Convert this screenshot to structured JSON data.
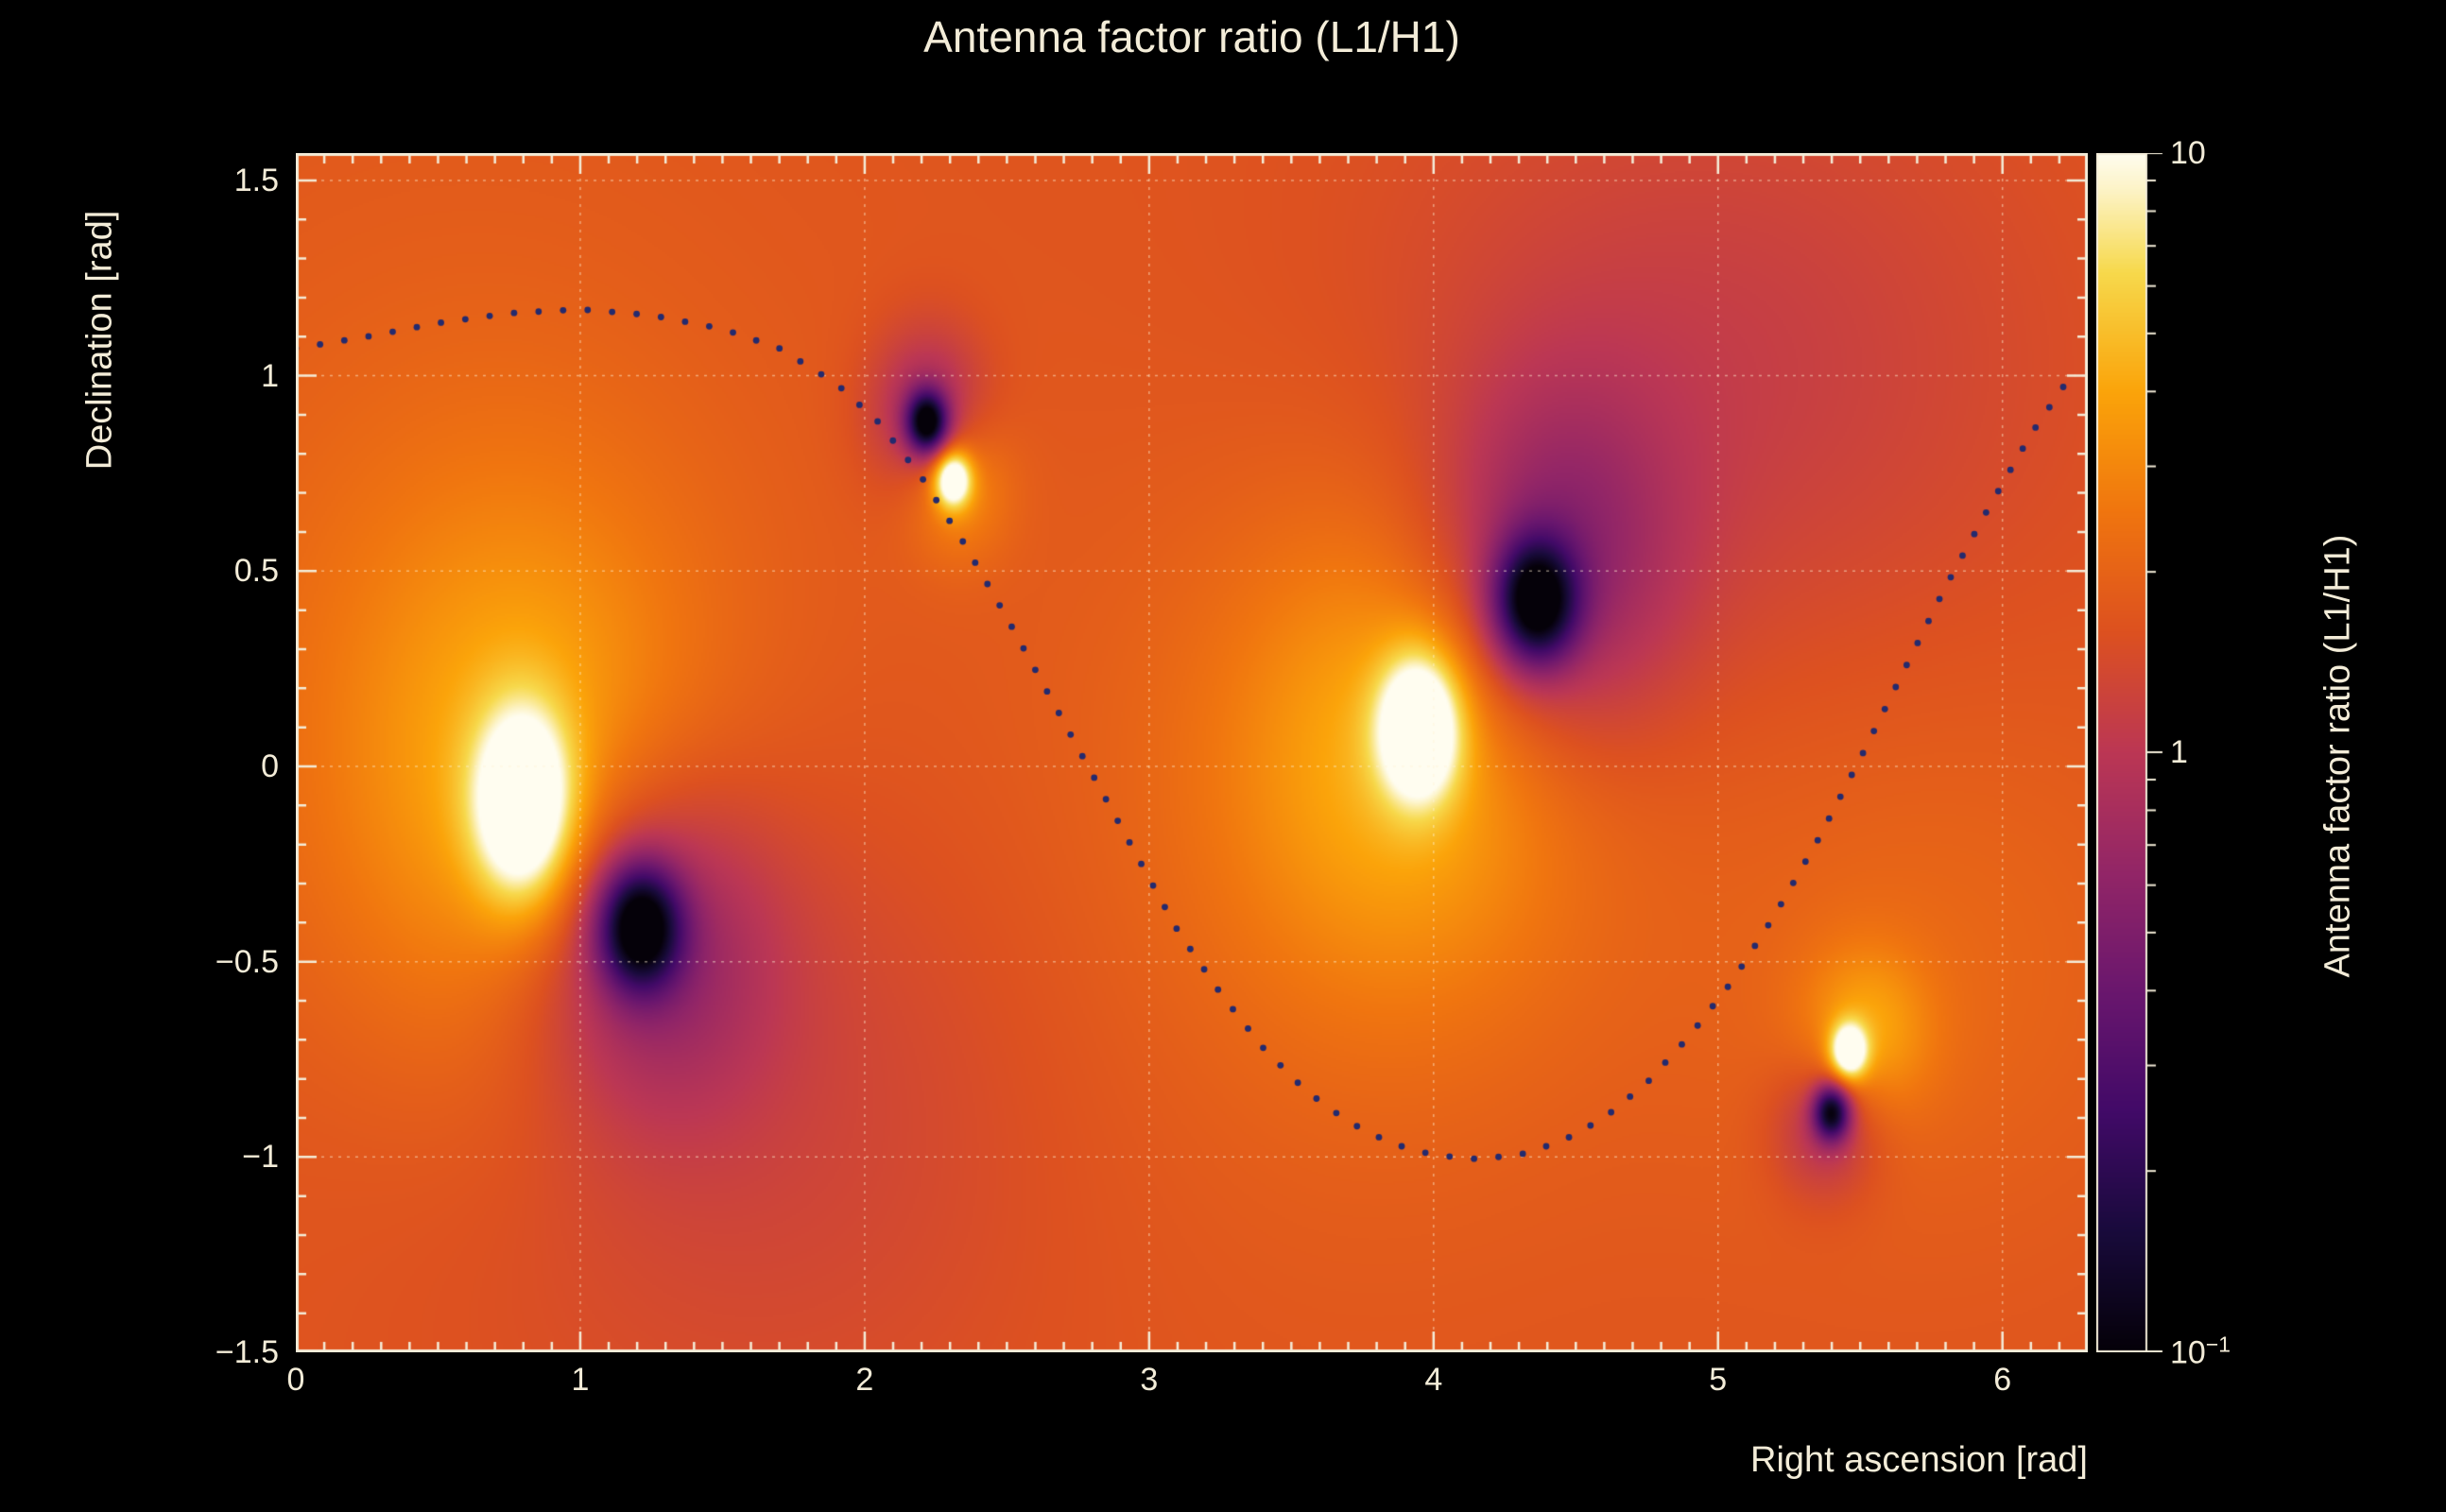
{
  "page": {
    "title": "Antenna factor ratio (L1/H1)"
  },
  "chart_data": {
    "type": "heatmap",
    "title": "Antenna factor ratio (L1/H1)",
    "xlabel": "Right ascension [rad]",
    "ylabel": "Declination [rad]",
    "colorbar_label": "Antenna factor ratio (L1/H1)",
    "x_range": [
      0,
      6.3
    ],
    "y_range": [
      -1.5,
      1.57
    ],
    "z_range": [
      0.1,
      10
    ],
    "z_scale": "log10",
    "grid": true,
    "x_ticks": [
      0,
      1,
      2,
      3,
      4,
      5,
      6
    ],
    "x_tick_labels": [
      "0",
      "1",
      "2",
      "3",
      "4",
      "5",
      "6"
    ],
    "x_minor_step": 0.1,
    "y_ticks": [
      -1.5,
      -1,
      -0.5,
      0,
      0.5,
      1,
      1.5
    ],
    "y_tick_labels": [
      "−1.5",
      "−1",
      "−0.5",
      "0",
      "0.5",
      "1",
      "1.5"
    ],
    "y_minor_step": 0.1,
    "colorbar_ticks": [
      {
        "value": 10,
        "label": "10",
        "sup": ""
      },
      {
        "value": 1,
        "label": "1",
        "sup": ""
      },
      {
        "value": 0.1,
        "label": "10",
        "sup": "−1"
      }
    ],
    "background_log10": 0.22,
    "features": [
      {
        "x": 0.8,
        "y": -0.1,
        "sx": 0.12,
        "sy": 0.17,
        "amp": 0.95
      },
      {
        "x": 0.8,
        "y": -0.05,
        "sx": 0.45,
        "sy": 0.5,
        "amp": 0.38
      },
      {
        "x": 0.55,
        "y": 0.35,
        "sx": 0.9,
        "sy": 0.8,
        "amp": 0.1
      },
      {
        "x": 1.21,
        "y": -0.41,
        "sx": 0.1,
        "sy": 0.11,
        "amp": -1.15
      },
      {
        "x": 1.24,
        "y": -0.45,
        "sx": 0.3,
        "sy": 0.3,
        "amp": -0.5
      },
      {
        "x": 1.6,
        "y": -0.8,
        "sx": 0.8,
        "sy": 0.6,
        "amp": -0.14
      },
      {
        "x": 2.22,
        "y": 0.88,
        "sx": 0.05,
        "sy": 0.055,
        "amp": -1.15
      },
      {
        "x": 2.22,
        "y": 0.9,
        "sx": 0.14,
        "sy": 0.15,
        "amp": -0.4
      },
      {
        "x": 2.31,
        "y": 0.735,
        "sx": 0.045,
        "sy": 0.05,
        "amp": 0.95
      },
      {
        "x": 2.32,
        "y": 0.72,
        "sx": 0.13,
        "sy": 0.13,
        "amp": 0.32
      },
      {
        "x": 3.95,
        "y": 0.1,
        "sx": 0.1,
        "sy": 0.13,
        "amp": 0.95
      },
      {
        "x": 3.9,
        "y": 0.05,
        "sx": 0.42,
        "sy": 0.42,
        "amp": 0.38
      },
      {
        "x": 3.55,
        "y": -0.25,
        "sx": 0.9,
        "sy": 0.7,
        "amp": 0.1
      },
      {
        "x": 4.36,
        "y": 0.42,
        "sx": 0.1,
        "sy": 0.11,
        "amp": -1.15
      },
      {
        "x": 4.42,
        "y": 0.5,
        "sx": 0.3,
        "sy": 0.32,
        "amp": -0.48
      },
      {
        "x": 4.95,
        "y": 1.0,
        "sx": 0.8,
        "sy": 0.55,
        "amp": -0.17
      },
      {
        "x": 5.46,
        "y": -0.73,
        "sx": 0.045,
        "sy": 0.05,
        "amp": 0.92
      },
      {
        "x": 5.52,
        "y": -0.68,
        "sx": 0.16,
        "sy": 0.15,
        "amp": 0.32
      },
      {
        "x": 5.75,
        "y": -0.5,
        "sx": 0.6,
        "sy": 0.5,
        "amp": 0.1
      },
      {
        "x": 5.4,
        "y": -0.885,
        "sx": 0.045,
        "sy": 0.05,
        "amp": -1.05
      },
      {
        "x": 5.38,
        "y": -0.92,
        "sx": 0.13,
        "sy": 0.13,
        "amp": -0.33
      }
    ],
    "track": {
      "color": "#242a6e",
      "points": [
        [
          0.0,
          1.07
        ],
        [
          0.25,
          1.1
        ],
        [
          0.5,
          1.135
        ],
        [
          0.75,
          1.16
        ],
        [
          1.0,
          1.17
        ],
        [
          1.25,
          1.155
        ],
        [
          1.5,
          1.12
        ],
        [
          1.7,
          1.07
        ],
        [
          1.9,
          0.98
        ],
        [
          2.05,
          0.88
        ],
        [
          2.2,
          0.74
        ],
        [
          2.35,
          0.57
        ],
        [
          2.5,
          0.38
        ],
        [
          2.65,
          0.18
        ],
        [
          2.8,
          -0.02
        ],
        [
          2.95,
          -0.22
        ],
        [
          3.1,
          -0.42
        ],
        [
          3.25,
          -0.58
        ],
        [
          3.4,
          -0.72
        ],
        [
          3.55,
          -0.83
        ],
        [
          3.7,
          -0.91
        ],
        [
          3.85,
          -0.965
        ],
        [
          4.0,
          -0.995
        ],
        [
          4.15,
          -1.005
        ],
        [
          4.3,
          -0.995
        ],
        [
          4.45,
          -0.96
        ],
        [
          4.6,
          -0.9
        ],
        [
          4.75,
          -0.81
        ],
        [
          4.9,
          -0.69
        ],
        [
          5.05,
          -0.55
        ],
        [
          5.2,
          -0.38
        ],
        [
          5.35,
          -0.19
        ],
        [
          5.5,
          0.02
        ],
        [
          5.65,
          0.24
        ],
        [
          5.8,
          0.46
        ],
        [
          5.95,
          0.66
        ],
        [
          6.1,
          0.85
        ],
        [
          6.25,
          1.01
        ]
      ]
    },
    "colormap_stops": [
      [
        0.0,
        "#050109"
      ],
      [
        0.1,
        "#190b3c"
      ],
      [
        0.2,
        "#420a68"
      ],
      [
        0.3,
        "#6a176e"
      ],
      [
        0.4,
        "#932667"
      ],
      [
        0.5,
        "#bc3754"
      ],
      [
        0.6,
        "#dd5120"
      ],
      [
        0.7,
        "#f0750f"
      ],
      [
        0.8,
        "#fba40a"
      ],
      [
        0.9,
        "#f7d94c"
      ],
      [
        0.97,
        "#fdf4c8"
      ],
      [
        1.0,
        "#fffdf0"
      ]
    ],
    "colors": {
      "text": "#f3ecd8",
      "axis": "#f3ecd8",
      "grid": "rgba(255,243,214,0.5)",
      "background": "#000000"
    }
  }
}
